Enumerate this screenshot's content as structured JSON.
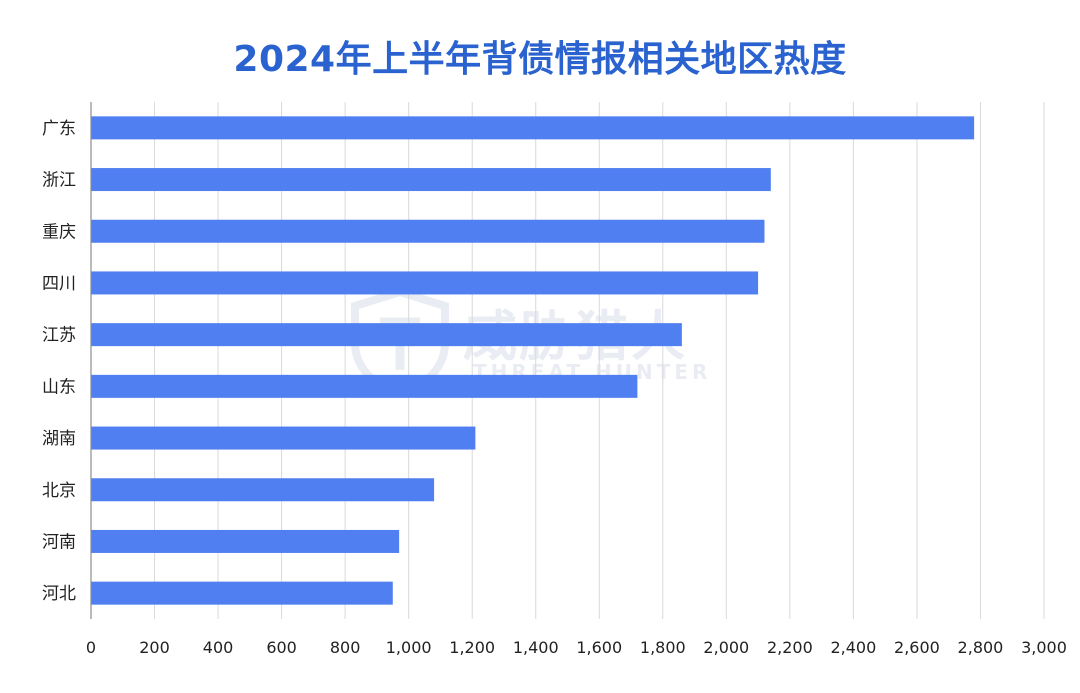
{
  "chart_data": {
    "type": "bar",
    "orientation": "horizontal",
    "title": "2024年上半年背债情报相关地区热度",
    "categories": [
      "广东",
      "浙江",
      "重庆",
      "四川",
      "江苏",
      "山东",
      "湖南",
      "北京",
      "河南",
      "河北"
    ],
    "values": [
      2780,
      2140,
      2120,
      2100,
      1860,
      1720,
      1210,
      1080,
      970,
      950
    ],
    "xlim": [
      0,
      3000
    ],
    "x_ticks": [
      0,
      200,
      400,
      600,
      800,
      1000,
      1200,
      1400,
      1600,
      1800,
      2000,
      2200,
      2400,
      2600,
      2800,
      3000
    ],
    "x_tick_labels": [
      "0",
      "200",
      "400",
      "600",
      "800",
      "1,000",
      "1,200",
      "1,400",
      "1,600",
      "1,800",
      "2,000",
      "2,200",
      "2,400",
      "2,600",
      "2,800",
      "3,000"
    ],
    "grid": "vertical",
    "legend": "none",
    "bar_color": "#4f7ff0",
    "title_color": "#2a62cf"
  },
  "watermark": {
    "icon": "shield-icon"
  }
}
